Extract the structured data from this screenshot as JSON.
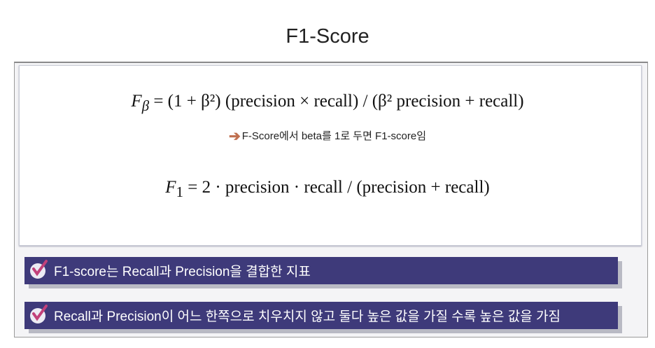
{
  "title": "F1-Score",
  "formula_fbeta": {
    "lhs": "F",
    "lhs_sub": "β",
    "rhs": "= (1 + β²) (precision × recall) / (β² precision + recall)"
  },
  "note": "F-Score에서 beta를 1로 두면  F1-score임",
  "formula_f1": {
    "lhs": "F",
    "lhs_sub": "1",
    "rhs": "= 2 · precision · recall / (precision + recall)"
  },
  "bullets": [
    {
      "icon": "checkmark-icon",
      "text": "F1-score는 Recall과 Precision을 결합한 지표"
    },
    {
      "icon": "checkmark-icon",
      "text": "Recall과 Precision이 어느 한쪽으로 치우치지 않고 둘다 높은 값을 가질 수록 높은 값을 가짐"
    }
  ],
  "colors": {
    "banner": "#3e3a7a",
    "arrow": "#c0704f",
    "check": "#c2417a"
  }
}
